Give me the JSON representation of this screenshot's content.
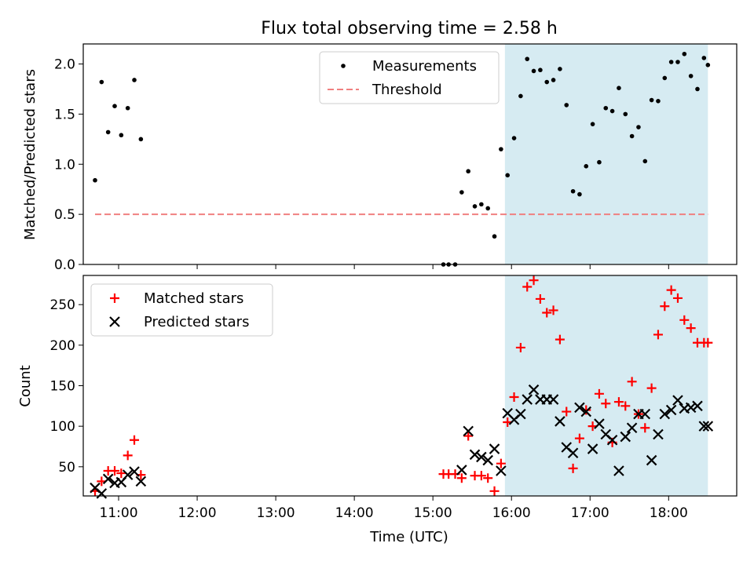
{
  "figure": {
    "title": "Flux total observing time = 2.58 h"
  },
  "chart_data": [
    {
      "type": "scatter",
      "title": "Flux total observing time = 2.58 h",
      "ylabel": "Matched/Predicted stars",
      "xlabel": "",
      "xlim": [
        "10:33",
        "18:52"
      ],
      "ylim": [
        0,
        2.2
      ],
      "yticks": [
        "0.0",
        "0.5",
        "1.0",
        "1.5",
        "2.0"
      ],
      "xticks": [
        "11:00",
        "12:00",
        "13:00",
        "14:00",
        "15:00",
        "16:00",
        "17:00",
        "18:00"
      ],
      "xtick_labels_visible": false,
      "legend": {
        "placement": "upper center",
        "entries": [
          "Measurements",
          "Threshold"
        ]
      },
      "shaded_region": {
        "x_start": "15:55",
        "x_end": "18:30",
        "color": "#add8e6"
      },
      "threshold": {
        "name": "Threshold",
        "y": 0.5,
        "x_start": "10:42",
        "x_end": "18:30",
        "color": "#f08080",
        "style": "dashed"
      },
      "series": [
        {
          "name": "Measurements",
          "color": "#000000",
          "marker": "dot",
          "x": [
            "10:42",
            "10:47",
            "10:52",
            "10:57",
            "11:02",
            "11:07",
            "11:12",
            "11:17",
            "15:08",
            "15:12",
            "15:17",
            "15:22",
            "15:27",
            "15:32",
            "15:37",
            "15:42",
            "15:47",
            "15:52",
            "15:57",
            "16:02",
            "16:07",
            "16:12",
            "16:17",
            "16:22",
            "16:27",
            "16:32",
            "16:37",
            "16:42",
            "16:47",
            "16:52",
            "16:57",
            "17:02",
            "17:07",
            "17:12",
            "17:17",
            "17:22",
            "17:27",
            "17:32",
            "17:37",
            "17:42",
            "17:47",
            "17:52",
            "17:57",
            "18:02",
            "18:07",
            "18:12",
            "18:17",
            "18:22",
            "18:27",
            "18:30"
          ],
          "y": [
            0.84,
            1.82,
            1.32,
            1.58,
            1.29,
            1.56,
            1.84,
            1.25,
            0.0,
            0.0,
            0.0,
            0.72,
            0.93,
            0.58,
            0.6,
            0.56,
            0.28,
            1.15,
            0.89,
            1.26,
            1.68,
            2.05,
            1.93,
            1.94,
            1.82,
            1.84,
            1.95,
            1.59,
            0.73,
            0.7,
            0.98,
            1.4,
            1.02,
            1.56,
            1.53,
            1.76,
            1.5,
            1.28,
            1.37,
            1.03,
            1.64,
            1.63,
            1.86,
            2.02,
            2.02,
            2.1,
            1.88,
            1.75,
            2.06,
            1.99
          ]
        }
      ]
    },
    {
      "type": "scatter",
      "title": "",
      "ylabel": "Count",
      "xlabel": "Time (UTC)",
      "xlim": [
        "10:33",
        "18:52"
      ],
      "ylim": [
        14,
        286
      ],
      "yticks": [
        "50",
        "100",
        "150",
        "200",
        "250"
      ],
      "xticks": [
        "11:00",
        "12:00",
        "13:00",
        "14:00",
        "15:00",
        "16:00",
        "17:00",
        "18:00"
      ],
      "xtick_labels_visible": true,
      "legend": {
        "placement": "upper left",
        "entries": [
          "Matched stars",
          "Predicted stars"
        ]
      },
      "shaded_region": {
        "x_start": "15:55",
        "x_end": "18:30",
        "color": "#add8e6"
      },
      "series": [
        {
          "name": "Matched stars",
          "color": "#ff0000",
          "marker": "plus",
          "x": [
            "10:42",
            "10:47",
            "10:52",
            "10:57",
            "11:02",
            "11:07",
            "11:12",
            "11:17",
            "15:08",
            "15:12",
            "15:17",
            "15:22",
            "15:27",
            "15:32",
            "15:37",
            "15:42",
            "15:47",
            "15:52",
            "15:57",
            "16:02",
            "16:07",
            "16:12",
            "16:17",
            "16:22",
            "16:27",
            "16:32",
            "16:37",
            "16:42",
            "16:47",
            "16:52",
            "16:57",
            "17:02",
            "17:07",
            "17:12",
            "17:17",
            "17:22",
            "17:27",
            "17:32",
            "17:37",
            "17:42",
            "17:47",
            "17:52",
            "17:57",
            "18:02",
            "18:07",
            "18:12",
            "18:17",
            "18:22",
            "18:27",
            "18:30"
          ],
          "y": [
            20,
            32,
            45,
            45,
            42,
            64,
            83,
            40,
            41,
            41,
            41,
            36,
            88,
            39,
            39,
            36,
            20,
            54,
            105,
            136,
            197,
            272,
            280,
            257,
            240,
            243,
            207,
            118,
            48,
            85,
            120,
            100,
            140,
            128,
            80,
            130,
            125,
            155,
            115,
            98,
            147,
            213,
            248,
            268,
            258,
            231,
            221,
            203,
            203,
            203
          ]
        },
        {
          "name": "Predicted stars",
          "color": "#000000",
          "marker": "x",
          "x": [
            "10:42",
            "10:47",
            "10:52",
            "10:57",
            "11:02",
            "11:07",
            "11:12",
            "11:17",
            "15:22",
            "15:27",
            "15:32",
            "15:37",
            "15:42",
            "15:47",
            "15:52",
            "15:57",
            "16:02",
            "16:07",
            "16:12",
            "16:17",
            "16:22",
            "16:27",
            "16:32",
            "16:37",
            "16:42",
            "16:47",
            "16:52",
            "16:57",
            "17:02",
            "17:07",
            "17:12",
            "17:17",
            "17:22",
            "17:27",
            "17:32",
            "17:37",
            "17:42",
            "17:47",
            "17:52",
            "17:57",
            "18:02",
            "18:07",
            "18:12",
            "18:17",
            "18:22",
            "18:27",
            "18:30"
          ],
          "y": [
            24,
            17,
            35,
            30,
            31,
            40,
            44,
            32,
            46,
            94,
            65,
            62,
            58,
            72,
            45,
            116,
            108,
            115,
            133,
            145,
            133,
            133,
            133,
            106,
            74,
            67,
            123,
            118,
            72,
            103,
            90,
            83,
            45,
            87,
            98,
            115,
            115,
            58,
            90,
            115,
            120,
            132,
            122,
            123,
            125,
            100,
            100
          ]
        }
      ]
    }
  ]
}
